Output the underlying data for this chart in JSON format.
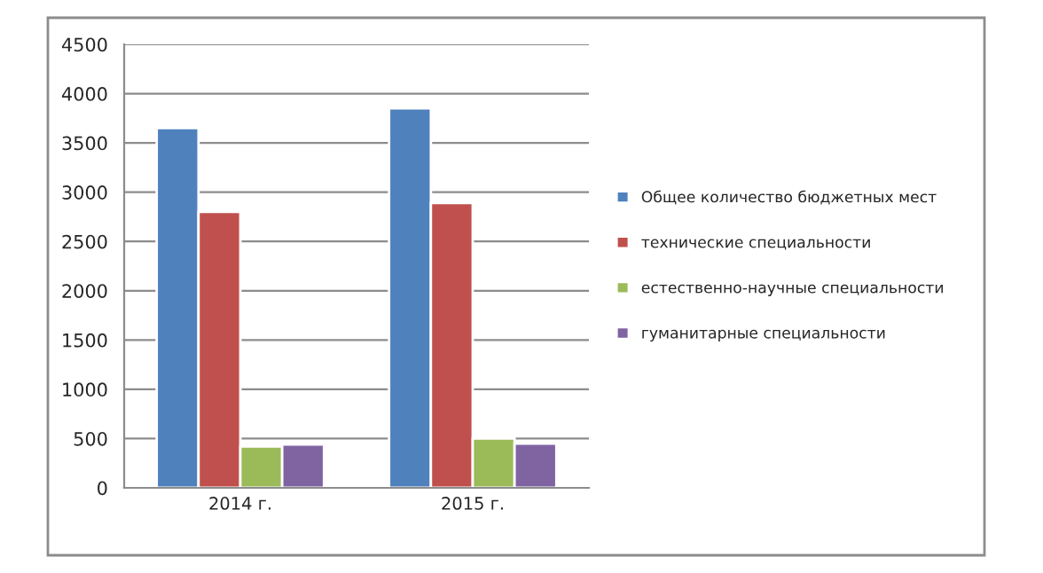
{
  "chart_data": {
    "type": "bar",
    "categories": [
      "2014 г.",
      "2015 г."
    ],
    "series": [
      {
        "name": "Общее количество бюджетных мест",
        "color": "#4f81bd",
        "values": [
          3650,
          3850
        ]
      },
      {
        "name": "технические специальности",
        "color": "#c0504d",
        "values": [
          2800,
          2890
        ]
      },
      {
        "name": "естественно-научные специальности",
        "color": "#9bbb59",
        "values": [
          420,
          500
        ]
      },
      {
        "name": "гуманитарные специальности",
        "color": "#8064a2",
        "values": [
          440,
          450
        ]
      }
    ],
    "ylim": [
      0,
      4500
    ],
    "yticks": [
      0,
      500,
      1000,
      1500,
      2000,
      2500,
      3000,
      3500,
      4000,
      4500
    ],
    "grid": "y",
    "legend": "right"
  }
}
